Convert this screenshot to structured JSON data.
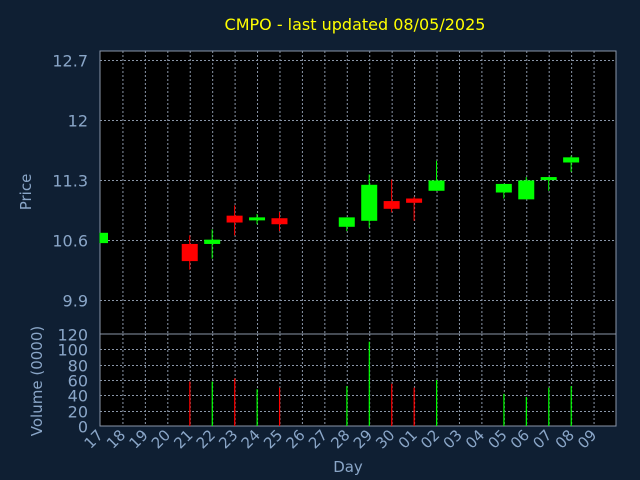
{
  "chart_data": {
    "type": "candlestick",
    "title": "CMPO - last updated 08/05/2025",
    "price_ylabel": "Price",
    "volume_ylabel": "Volume (0000)",
    "xlabel": "Day",
    "price_ylim": [
      9.5,
      12.8
    ],
    "price_ticks": [
      "12.7",
      "12",
      "11.3",
      "10.6",
      "9.9"
    ],
    "price_tick_values": [
      12.7,
      12.0,
      11.3,
      10.6,
      9.9
    ],
    "volume_ylim": [
      0,
      120
    ],
    "volume_ticks": [
      "120",
      "100",
      "80",
      "60",
      "40",
      "20",
      "0"
    ],
    "volume_tick_values": [
      120,
      100,
      80,
      60,
      40,
      20,
      0
    ],
    "categories": [
      "17",
      "18",
      "19",
      "20",
      "21",
      "22",
      "23",
      "24",
      "25",
      "26",
      "27",
      "28",
      "29",
      "30",
      "01",
      "02",
      "03",
      "04",
      "05",
      "06",
      "07",
      "08",
      "09"
    ],
    "grid": true,
    "colors": {
      "up": "#00ff00",
      "down": "#ff0000",
      "background": "#0f1f33",
      "panel": "#000000",
      "grid": "#8a96a8",
      "frame": "#8a96a8",
      "title": "#ffff00",
      "text": "#8aa6c8"
    },
    "candles": [
      {
        "day": "17",
        "open": 10.56,
        "close": 10.68,
        "high": 10.68,
        "low": 10.56,
        "volume": 0
      },
      {
        "day": "21",
        "open": 10.55,
        "close": 10.35,
        "high": 10.65,
        "low": 10.25,
        "volume": 58
      },
      {
        "day": "22",
        "open": 10.55,
        "close": 10.6,
        "high": 10.72,
        "low": 10.38,
        "volume": 58
      },
      {
        "day": "23",
        "open": 10.88,
        "close": 10.8,
        "high": 11.0,
        "low": 10.65,
        "volume": 62
      },
      {
        "day": "24",
        "open": 10.84,
        "close": 10.86,
        "high": 10.9,
        "low": 10.78,
        "volume": 48
      },
      {
        "day": "25",
        "open": 10.85,
        "close": 10.78,
        "high": 10.92,
        "low": 10.7,
        "volume": 50
      },
      {
        "day": "28",
        "open": 10.75,
        "close": 10.86,
        "high": 10.86,
        "low": 10.7,
        "volume": 52
      },
      {
        "day": "29",
        "open": 10.82,
        "close": 11.24,
        "high": 11.36,
        "low": 10.74,
        "volume": 110
      },
      {
        "day": "30",
        "open": 11.05,
        "close": 10.96,
        "high": 11.3,
        "low": 10.92,
        "volume": 55
      },
      {
        "day": "01",
        "open": 11.08,
        "close": 11.03,
        "high": 11.1,
        "low": 10.82,
        "volume": 50
      },
      {
        "day": "02",
        "open": 11.17,
        "close": 11.29,
        "high": 11.52,
        "low": 11.17,
        "volume": 60
      },
      {
        "day": "05",
        "open": 11.15,
        "close": 11.25,
        "high": 11.25,
        "low": 11.08,
        "volume": 42
      },
      {
        "day": "06",
        "open": 11.07,
        "close": 11.29,
        "high": 11.33,
        "low": 11.07,
        "volume": 38
      },
      {
        "day": "07",
        "open": 11.3,
        "close": 11.33,
        "high": 11.33,
        "low": 11.17,
        "volume": 50
      },
      {
        "day": "08",
        "open": 11.5,
        "close": 11.56,
        "high": 11.58,
        "low": 11.39,
        "volume": 52
      }
    ]
  }
}
